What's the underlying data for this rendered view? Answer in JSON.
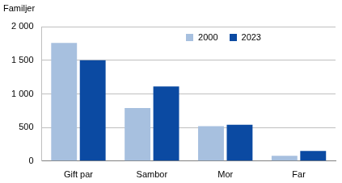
{
  "chart_data": {
    "type": "bar",
    "ylabel": "Familjer",
    "categories": [
      "Gift par",
      "Sambor",
      "Mor",
      "Far"
    ],
    "series": [
      {
        "name": "2000",
        "color": "#a7c0df",
        "values": [
          1760,
          790,
          520,
          80
        ]
      },
      {
        "name": "2023",
        "color": "#0b4aa2",
        "values": [
          1500,
          1110,
          540,
          150
        ]
      }
    ],
    "ylim": [
      0,
      2000
    ],
    "yticks": [
      0,
      500,
      {
        "value": 1000,
        "label": "1 000"
      },
      {
        "value": 1500,
        "label": "1 500"
      },
      {
        "value": 2000,
        "label": "2 000"
      }
    ],
    "grid": true,
    "legend": "upper right"
  }
}
